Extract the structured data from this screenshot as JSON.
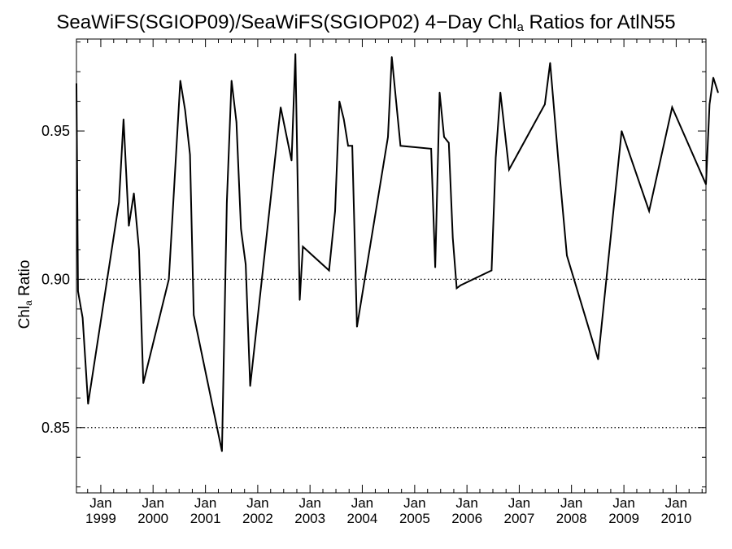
{
  "chart_data": {
    "type": "line",
    "title": {
      "before": "SeaWiFS(SGIOP09)/SeaWiFS(SGIOP02) 4−Day Chl",
      "sub": "a",
      "after": " Ratios for AtlN55"
    },
    "ylabel": {
      "before": "Chl",
      "sub": "a",
      "after": " Ratio"
    },
    "ylim": [
      0.828,
      0.981
    ],
    "yticks": [
      0.85,
      0.9,
      0.95
    ],
    "ytick_labels": [
      "0.85",
      "0.90",
      "0.95"
    ],
    "reference_lines": [
      0.85,
      0.9
    ],
    "xlim": [
      "1998-07-15",
      "2010-07-28"
    ],
    "xticks": [
      {
        "date": "1999-01-01",
        "month": "Jan",
        "year": "1999"
      },
      {
        "date": "2000-01-01",
        "month": "Jan",
        "year": "2000"
      },
      {
        "date": "2001-01-01",
        "month": "Jan",
        "year": "2001"
      },
      {
        "date": "2002-01-01",
        "month": "Jan",
        "year": "2002"
      },
      {
        "date": "2003-01-01",
        "month": "Jan",
        "year": "2003"
      },
      {
        "date": "2004-01-01",
        "month": "Jan",
        "year": "2004"
      },
      {
        "date": "2005-01-01",
        "month": "Jan",
        "year": "2005"
      },
      {
        "date": "2006-01-01",
        "month": "Jan",
        "year": "2006"
      },
      {
        "date": "2007-01-01",
        "month": "Jan",
        "year": "2007"
      },
      {
        "date": "2008-01-01",
        "month": "Jan",
        "year": "2008"
      },
      {
        "date": "2009-01-01",
        "month": "Jan",
        "year": "2009"
      },
      {
        "date": "2010-01-01",
        "month": "Jan",
        "year": "2010"
      }
    ],
    "series": [
      {
        "color": "#000000",
        "points": [
          [
            "1998-07-15",
            0.966
          ],
          [
            "1998-07-26",
            0.896
          ],
          [
            "1998-08-27",
            0.887
          ],
          [
            "1998-10-04",
            0.858
          ],
          [
            "1999-05-08",
            0.926
          ],
          [
            "1999-06-09",
            0.954
          ],
          [
            "1999-07-16",
            0.918
          ],
          [
            "1999-08-20",
            0.929
          ],
          [
            "1999-09-25",
            0.91
          ],
          [
            "1999-10-25",
            0.865
          ],
          [
            "2000-04-20",
            0.9
          ],
          [
            "2000-07-09",
            0.967
          ],
          [
            "2000-08-12",
            0.957
          ],
          [
            "2000-09-15",
            0.942
          ],
          [
            "2000-10-11",
            0.888
          ],
          [
            "2001-04-26",
            0.842
          ],
          [
            "2001-05-30",
            0.926
          ],
          [
            "2001-07-02",
            0.967
          ],
          [
            "2001-08-05",
            0.953
          ],
          [
            "2001-09-06",
            0.917
          ],
          [
            "2001-10-09",
            0.905
          ],
          [
            "2001-11-09",
            0.864
          ],
          [
            "2002-06-10",
            0.958
          ],
          [
            "2002-08-25",
            0.94
          ],
          [
            "2002-09-21",
            0.976
          ],
          [
            "2002-10-21",
            0.893
          ],
          [
            "2002-11-12",
            0.911
          ],
          [
            "2003-05-14",
            0.903
          ],
          [
            "2003-06-25",
            0.923
          ],
          [
            "2003-07-25",
            0.96
          ],
          [
            "2003-08-25",
            0.954
          ],
          [
            "2003-09-24",
            0.945
          ],
          [
            "2003-10-23",
            0.945
          ],
          [
            "2003-11-25",
            0.884
          ],
          [
            "2004-06-28",
            0.948
          ],
          [
            "2004-07-25",
            0.975
          ],
          [
            "2004-09-24",
            0.945
          ],
          [
            "2005-04-26",
            0.944
          ],
          [
            "2005-05-24",
            0.904
          ],
          [
            "2005-06-24",
            0.963
          ],
          [
            "2005-07-25",
            0.948
          ],
          [
            "2005-08-27",
            0.946
          ],
          [
            "2005-09-24",
            0.914
          ],
          [
            "2005-10-21",
            0.897
          ],
          [
            "2005-11-18",
            0.898
          ],
          [
            "2006-06-22",
            0.903
          ],
          [
            "2006-07-21",
            0.941
          ],
          [
            "2006-08-22",
            0.963
          ],
          [
            "2006-10-22",
            0.937
          ],
          [
            "2007-06-29",
            0.959
          ],
          [
            "2007-08-05",
            0.973
          ],
          [
            "2007-10-01",
            0.94
          ],
          [
            "2007-11-30",
            0.908
          ],
          [
            "2008-07-05",
            0.873
          ],
          [
            "2008-12-16",
            0.95
          ],
          [
            "2009-06-26",
            0.923
          ],
          [
            "2009-12-04",
            0.958
          ],
          [
            "2010-07-28",
            0.932
          ],
          [
            "2010-08-22",
            0.959
          ],
          [
            "2010-09-17",
            0.968
          ],
          [
            "2010-10-20",
            0.963
          ]
        ]
      }
    ],
    "grid": false
  }
}
